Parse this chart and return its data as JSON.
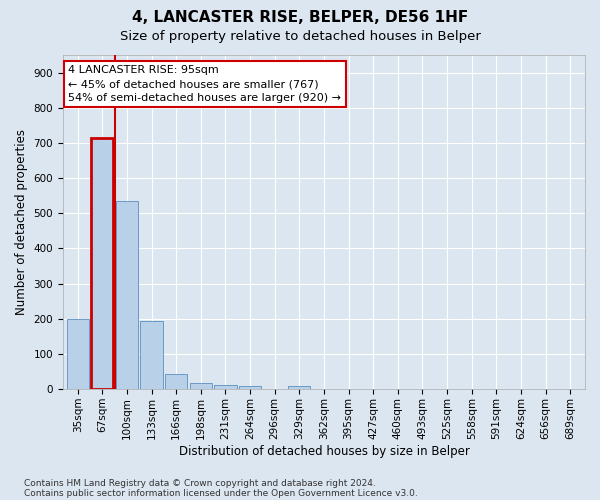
{
  "title": "4, LANCASTER RISE, BELPER, DE56 1HF",
  "subtitle": "Size of property relative to detached houses in Belper",
  "xlabel": "Distribution of detached houses by size in Belper",
  "ylabel": "Number of detached properties",
  "categories": [
    "35sqm",
    "67sqm",
    "100sqm",
    "133sqm",
    "166sqm",
    "198sqm",
    "231sqm",
    "264sqm",
    "296sqm",
    "329sqm",
    "362sqm",
    "395sqm",
    "427sqm",
    "460sqm",
    "493sqm",
    "525sqm",
    "558sqm",
    "591sqm",
    "624sqm",
    "656sqm",
    "689sqm"
  ],
  "values": [
    200,
    715,
    535,
    193,
    42,
    17,
    13,
    10,
    0,
    10,
    0,
    0,
    0,
    0,
    0,
    0,
    0,
    0,
    0,
    0,
    0
  ],
  "bar_color": "#b8d0e8",
  "bar_edge_color": "#5a8fc0",
  "highlight_index": 1,
  "highlight_bar_edge_color": "#cc0000",
  "property_line_x": 1.5,
  "annotation_text": "4 LANCASTER RISE: 95sqm\n← 45% of detached houses are smaller (767)\n54% of semi-detached houses are larger (920) →",
  "annotation_box_color": "#ffffff",
  "annotation_box_edge_color": "#cc0000",
  "ylim": [
    0,
    950
  ],
  "yticks": [
    0,
    100,
    200,
    300,
    400,
    500,
    600,
    700,
    800,
    900
  ],
  "footer_line1": "Contains HM Land Registry data © Crown copyright and database right 2024.",
  "footer_line2": "Contains public sector information licensed under the Open Government Licence v3.0.",
  "bg_color": "#dce6f0",
  "plot_bg_color": "#dce6f0",
  "title_fontsize": 11,
  "subtitle_fontsize": 9.5,
  "axis_label_fontsize": 8.5,
  "tick_fontsize": 7.5,
  "footer_fontsize": 6.5
}
